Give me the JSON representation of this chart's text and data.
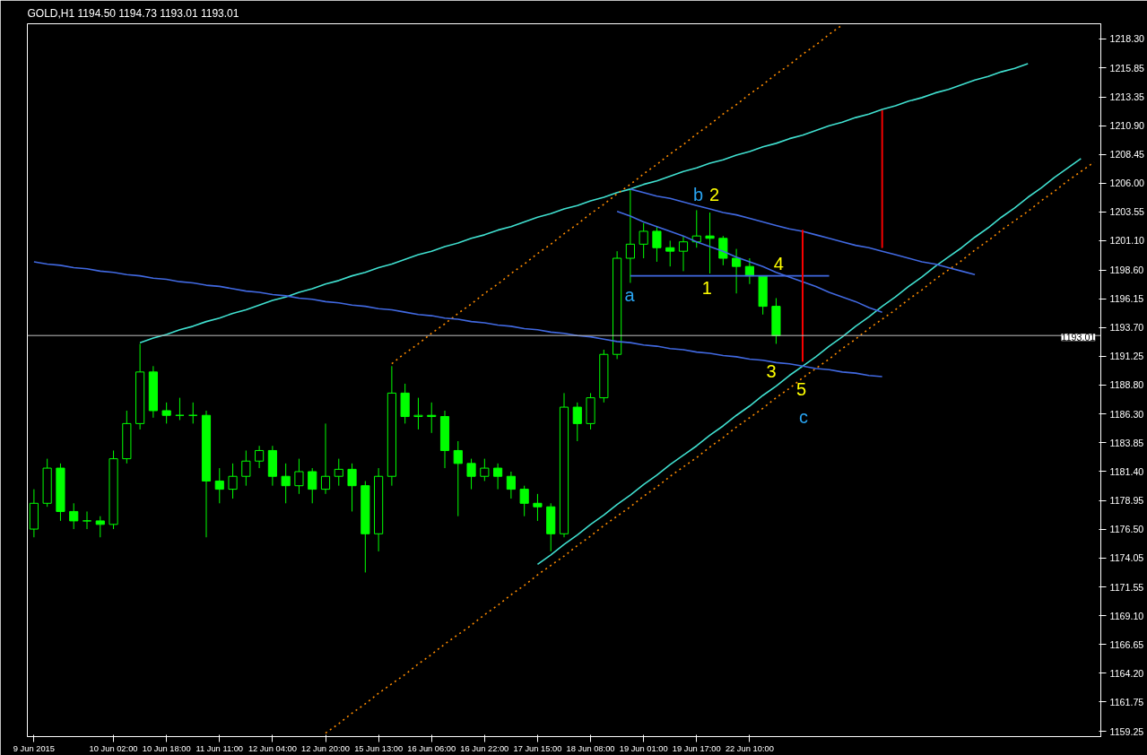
{
  "chart_data": {
    "type": "candlestick",
    "title": "GOLD,H1  1194.50 1194.73 1193.01 1193.01",
    "color": "#00ff00",
    "categories": [
      "9 Jun 2015",
      null,
      null,
      null,
      null,
      null,
      "10 Jun 02:00",
      null,
      null,
      null,
      "10 Jun 18:00",
      null,
      null,
      null,
      "11 Jun 11:00",
      null,
      null,
      null,
      "12 Jun 04:00",
      null,
      null,
      null,
      "12 Jun 20:00",
      null,
      null,
      null,
      "15 Jun 13:00",
      null,
      null,
      null,
      "16 Jun 06:00",
      null,
      null,
      null,
      "16 Jun 22:00",
      null,
      null,
      null,
      "17 Jun 15:00",
      null,
      null,
      null,
      "18 Jun 08:00",
      null,
      null,
      null,
      "19 Jun 01:00",
      null,
      null,
      null,
      "19 Jun 17:00",
      null,
      null,
      null,
      "22 Jun 10:00",
      null,
      null,
      null,
      null,
      null,
      null,
      null,
      null,
      null,
      null,
      null,
      null,
      null,
      null,
      null,
      null,
      null,
      null,
      null,
      null,
      null,
      null,
      null,
      null,
      null,
      null
    ],
    "ohlc": [
      [
        1176.5,
        1179.9,
        1175.8,
        1178.7
      ],
      [
        1178.7,
        1182.5,
        1178.4,
        1181.7
      ],
      [
        1181.7,
        1182.1,
        1177.2,
        1178.0
      ],
      [
        1178.0,
        1178.7,
        1176.5,
        1177.2
      ],
      [
        1177.2,
        1178.0,
        1176.5,
        1177.2
      ],
      [
        1177.2,
        1177.6,
        1175.8,
        1176.9
      ],
      [
        1176.9,
        1183.2,
        1176.5,
        1182.5
      ],
      [
        1182.5,
        1186.6,
        1182.1,
        1185.5
      ],
      [
        1185.5,
        1192.3,
        1185.0,
        1189.9
      ],
      [
        1189.9,
        1190.4,
        1186.0,
        1186.6
      ],
      [
        1186.6,
        1187.3,
        1185.5,
        1186.2
      ],
      [
        1186.2,
        1187.7,
        1185.8,
        1186.2
      ],
      [
        1186.2,
        1187.3,
        1185.5,
        1186.2
      ],
      [
        1186.2,
        1186.6,
        1175.8,
        1180.6
      ],
      [
        1180.6,
        1181.7,
        1178.7,
        1179.9
      ],
      [
        1179.9,
        1182.1,
        1179.1,
        1181.0
      ],
      [
        1181.0,
        1183.2,
        1180.2,
        1182.3
      ],
      [
        1182.3,
        1183.6,
        1181.7,
        1183.2
      ],
      [
        1183.2,
        1183.6,
        1180.2,
        1181.0
      ],
      [
        1181.0,
        1182.1,
        1178.7,
        1180.2
      ],
      [
        1180.2,
        1182.5,
        1179.5,
        1181.4
      ],
      [
        1181.4,
        1181.7,
        1178.7,
        1179.9
      ],
      [
        1179.9,
        1185.5,
        1179.5,
        1181.0
      ],
      [
        1181.0,
        1182.5,
        1180.2,
        1181.6
      ],
      [
        1181.6,
        1182.1,
        1178.0,
        1180.2
      ],
      [
        1180.2,
        1180.6,
        1172.8,
        1176.1
      ],
      [
        1176.1,
        1181.7,
        1174.6,
        1181.0
      ],
      [
        1181.0,
        1190.4,
        1180.2,
        1188.1
      ],
      [
        1188.1,
        1188.9,
        1185.5,
        1186.1
      ],
      [
        1186.1,
        1187.7,
        1185.0,
        1186.2
      ],
      [
        1186.2,
        1187.3,
        1184.7,
        1186.1
      ],
      [
        1186.1,
        1186.6,
        1181.7,
        1183.2
      ],
      [
        1183.2,
        1184.0,
        1177.6,
        1182.1
      ],
      [
        1182.1,
        1182.5,
        1179.9,
        1181.0
      ],
      [
        1181.0,
        1182.5,
        1180.6,
        1181.7
      ],
      [
        1181.7,
        1182.1,
        1179.9,
        1181.0
      ],
      [
        1181.0,
        1181.4,
        1179.1,
        1179.9
      ],
      [
        1179.9,
        1180.2,
        1177.6,
        1178.7
      ],
      [
        1178.7,
        1179.5,
        1177.2,
        1178.4
      ],
      [
        1178.4,
        1178.7,
        1174.6,
        1176.1
      ],
      [
        1176.1,
        1188.1,
        1175.8,
        1186.9
      ],
      [
        1186.9,
        1187.3,
        1184.0,
        1185.5
      ],
      [
        1185.5,
        1188.1,
        1185.0,
        1187.7
      ],
      [
        1187.7,
        1191.8,
        1187.3,
        1191.4
      ],
      [
        1191.4,
        1200.2,
        1191.0,
        1199.6
      ],
      [
        1199.6,
        1205.5,
        1197.5,
        1200.8
      ],
      [
        1200.8,
        1202.6,
        1199.6,
        1201.9
      ],
      [
        1201.9,
        1202.3,
        1199.3,
        1200.5
      ],
      [
        1200.5,
        1201.1,
        1198.9,
        1200.2
      ],
      [
        1200.2,
        1201.5,
        1198.5,
        1201.0
      ],
      [
        1201.0,
        1203.7,
        1200.5,
        1201.5
      ],
      [
        1201.5,
        1203.5,
        1198.3,
        1201.3
      ],
      [
        1201.3,
        1201.5,
        1199.0,
        1199.6
      ],
      [
        1199.6,
        1200.4,
        1196.6,
        1198.9
      ],
      [
        1198.9,
        1199.6,
        1197.4,
        1198.1
      ],
      [
        1198.1,
        1198.1,
        1194.8,
        1195.5
      ],
      [
        1195.5,
        1196.2,
        1192.3,
        1193.0
      ],
      null,
      null,
      null,
      null,
      null,
      null,
      null,
      null,
      null,
      null,
      null,
      null,
      null,
      null,
      null,
      null,
      null,
      null,
      null,
      null,
      null,
      null,
      null,
      null
    ],
    "series": [
      {
        "type": "line",
        "color": "#40e0d0",
        "values": [
          null,
          null,
          null,
          null,
          null,
          null,
          null,
          null,
          1192.4,
          1192.8,
          1193.1,
          1193.5,
          1193.8,
          1194.2,
          1194.5,
          1194.9,
          1195.2,
          1195.6,
          1196.0,
          1196.3,
          1196.7,
          1197.0,
          1197.4,
          1197.7,
          1198.1,
          1198.4,
          1198.8,
          1199.1,
          1199.5,
          1199.9,
          1200.2,
          1200.6,
          1200.9,
          1201.3,
          1201.6,
          1202.0,
          1202.3,
          1202.7,
          1203.1,
          1203.4,
          1203.8,
          1204.1,
          1204.5,
          1204.8,
          1205.2,
          1205.5,
          1205.9,
          1206.2,
          1206.6,
          1207.0,
          1207.3,
          1207.7,
          1208.0,
          1208.4,
          1208.7,
          1209.1,
          1209.4,
          1209.8,
          1210.1,
          1210.5,
          1210.9,
          1211.2,
          1211.6,
          1211.9,
          1212.3,
          1212.6,
          1213.0,
          1213.3,
          1213.7,
          1214.0,
          1214.4,
          1214.8,
          1215.1,
          1215.5,
          1215.8,
          1216.2,
          null,
          null,
          null,
          null,
          null
        ]
      },
      {
        "type": "line",
        "color": "#40e0d0",
        "values": [
          null,
          null,
          null,
          null,
          null,
          null,
          null,
          null,
          null,
          null,
          null,
          null,
          null,
          null,
          null,
          null,
          null,
          null,
          null,
          null,
          null,
          null,
          null,
          null,
          null,
          null,
          null,
          null,
          null,
          null,
          null,
          null,
          null,
          null,
          null,
          null,
          null,
          null,
          1173.5,
          1174.3,
          1175.2,
          1176.0,
          1176.9,
          1177.7,
          1178.6,
          1179.4,
          1180.3,
          1181.1,
          1182.0,
          1182.8,
          1183.6,
          1184.5,
          1185.3,
          1186.2,
          1187.0,
          1187.9,
          1188.7,
          1189.6,
          1190.4,
          1191.2,
          1192.1,
          1192.9,
          1193.8,
          1194.6,
          1195.5,
          1196.3,
          1197.2,
          1198.0,
          1198.9,
          1199.7,
          1200.5,
          1201.4,
          1202.2,
          1203.1,
          1203.9,
          1204.8,
          1205.6,
          1206.5,
          1207.3,
          1208.1,
          null
        ]
      },
      {
        "type": "line",
        "color": "#ff8c00",
        "line_style": "dotted",
        "values": [
          null,
          null,
          null,
          null,
          null,
          null,
          null,
          null,
          null,
          null,
          null,
          null,
          null,
          null,
          null,
          null,
          null,
          null,
          null,
          null,
          null,
          null,
          null,
          null,
          null,
          null,
          null,
          1190.6,
          1191.5,
          1192.3,
          1193.2,
          1194.0,
          1194.9,
          1195.7,
          1196.6,
          1197.4,
          1198.3,
          1199.1,
          1200.0,
          1200.8,
          1201.7,
          1202.5,
          1203.4,
          1204.2,
          1205.1,
          1205.9,
          1206.8,
          1207.6,
          1208.5,
          1209.3,
          1210.2,
          1211.0,
          1211.9,
          1212.7,
          1213.6,
          1214.4,
          1215.3,
          1216.1,
          1217.0,
          1217.8,
          1218.7,
          1219.5,
          null,
          null,
          null,
          null,
          null,
          null,
          null,
          null,
          null,
          null,
          null,
          null,
          null,
          null,
          null,
          null,
          null,
          null,
          null
        ]
      },
      {
        "type": "line",
        "color": "#ff8c00",
        "line_style": "dotted",
        "values": [
          null,
          null,
          null,
          null,
          null,
          null,
          null,
          null,
          null,
          null,
          null,
          null,
          null,
          null,
          null,
          null,
          null,
          null,
          null,
          null,
          null,
          null,
          1159.1,
          1159.9,
          1160.8,
          1161.6,
          1162.5,
          1163.3,
          1164.1,
          1165.0,
          1165.8,
          1166.7,
          1167.5,
          1168.3,
          1169.2,
          1170.0,
          1170.9,
          1171.7,
          1172.6,
          1173.4,
          1174.2,
          1175.1,
          1175.9,
          1176.8,
          1177.6,
          1178.4,
          1179.3,
          1180.1,
          1181.0,
          1181.8,
          1182.6,
          1183.5,
          1184.3,
          1185.2,
          1186.0,
          1186.8,
          1187.7,
          1188.5,
          1189.4,
          1190.2,
          1191.0,
          1191.9,
          1192.7,
          1193.6,
          1194.4,
          1195.2,
          1196.1,
          1196.9,
          1197.8,
          1198.6,
          1199.4,
          1200.3,
          1201.1,
          1202.0,
          1202.8,
          1203.6,
          1204.5,
          1205.3,
          1206.2,
          1207.0,
          1207.8
        ]
      },
      {
        "type": "line",
        "color": "#4169e1",
        "values": [
          1199.3,
          1199.1,
          1199.0,
          1198.8,
          1198.7,
          1198.5,
          1198.4,
          1198.2,
          1198.1,
          1197.9,
          1197.8,
          1197.6,
          1197.5,
          1197.3,
          1197.2,
          1197.0,
          1196.8,
          1196.7,
          1196.5,
          1196.4,
          1196.2,
          1196.1,
          1195.9,
          1195.8,
          1195.6,
          1195.5,
          1195.3,
          1195.2,
          1195.0,
          1194.8,
          1194.7,
          1194.5,
          1194.4,
          1194.2,
          1194.1,
          1193.9,
          1193.8,
          1193.6,
          1193.5,
          1193.3,
          1193.2,
          1193.0,
          1192.9,
          1192.7,
          1192.5,
          1192.4,
          1192.2,
          1192.1,
          1191.9,
          1191.8,
          1191.6,
          1191.5,
          1191.3,
          1191.2,
          1191.0,
          1190.9,
          1190.7,
          1190.6,
          1190.4,
          1190.2,
          1190.1,
          1189.9,
          1189.8,
          1189.6,
          1189.5,
          null,
          null,
          null,
          null,
          null,
          null,
          null,
          null,
          null,
          null,
          null,
          null,
          null,
          null,
          null,
          null
        ]
      },
      {
        "type": "line",
        "color": "#4169e1",
        "values": [
          null,
          null,
          null,
          null,
          null,
          null,
          null,
          null,
          null,
          null,
          null,
          null,
          null,
          null,
          null,
          null,
          null,
          null,
          null,
          null,
          null,
          null,
          null,
          null,
          null,
          null,
          null,
          null,
          null,
          null,
          null,
          null,
          null,
          null,
          null,
          null,
          null,
          null,
          null,
          null,
          null,
          null,
          null,
          null,
          null,
          1205.5,
          1205.2,
          1204.9,
          1204.7,
          1204.4,
          1204.1,
          1203.8,
          1203.5,
          1203.3,
          1203.0,
          1202.7,
          1202.4,
          1202.1,
          1201.9,
          1201.6,
          1201.3,
          1201.0,
          1200.7,
          1200.5,
          1200.2,
          1199.9,
          1199.6,
          1199.3,
          1199.1,
          1198.8,
          1198.5,
          1198.2,
          null,
          null,
          null,
          null,
          null,
          null,
          null,
          null,
          null
        ]
      },
      {
        "type": "line",
        "color": "#4169e1",
        "values": [
          null,
          null,
          null,
          null,
          null,
          null,
          null,
          null,
          null,
          null,
          null,
          null,
          null,
          null,
          null,
          null,
          null,
          null,
          null,
          null,
          null,
          null,
          null,
          null,
          null,
          null,
          null,
          null,
          null,
          null,
          null,
          null,
          null,
          null,
          null,
          null,
          null,
          null,
          null,
          null,
          null,
          null,
          null,
          null,
          1203.6,
          1203.2,
          1202.7,
          1202.3,
          1201.9,
          1201.5,
          1201.0,
          1200.6,
          1200.2,
          1199.7,
          1199.3,
          1198.9,
          1198.4,
          1198.0,
          1197.6,
          1197.2,
          1196.7,
          1196.3,
          1195.9,
          1195.4,
          1195.0,
          null,
          null,
          null,
          null,
          null,
          null,
          null,
          null,
          null,
          null,
          null,
          null,
          null,
          null,
          null,
          null
        ]
      },
      {
        "type": "line",
        "color": "#4169e1",
        "values": [
          null,
          null,
          null,
          null,
          null,
          null,
          null,
          null,
          null,
          null,
          null,
          null,
          null,
          null,
          null,
          null,
          null,
          null,
          null,
          null,
          null,
          null,
          null,
          null,
          null,
          null,
          null,
          null,
          null,
          null,
          null,
          null,
          null,
          null,
          null,
          null,
          null,
          null,
          null,
          null,
          null,
          null,
          null,
          null,
          null,
          1198.1,
          1198.1,
          1198.1,
          1198.1,
          1198.1,
          1198.1,
          1198.1,
          1198.1,
          1198.1,
          1198.1,
          1198.1,
          1198.1,
          1198.1,
          1198.1,
          1198.1,
          1198.1,
          null,
          null,
          null,
          null,
          null,
          null,
          null,
          null,
          null,
          null,
          null,
          null,
          null,
          null,
          null,
          null,
          null,
          null,
          null,
          null
        ]
      },
      {
        "type": "bar",
        "color": "#ff0000",
        "base": [
          null,
          null,
          null,
          null,
          null,
          null,
          null,
          null,
          null,
          null,
          null,
          null,
          null,
          null,
          null,
          null,
          null,
          null,
          null,
          null,
          null,
          null,
          null,
          null,
          null,
          null,
          null,
          null,
          null,
          null,
          null,
          null,
          null,
          null,
          null,
          null,
          null,
          null,
          null,
          null,
          null,
          null,
          null,
          null,
          null,
          null,
          null,
          null,
          null,
          null,
          null,
          null,
          null,
          null,
          null,
          null,
          null,
          null,
          1190.8,
          null,
          null,
          null,
          null,
          null,
          1200.5,
          null,
          null,
          null,
          null,
          null,
          null,
          null,
          null,
          null,
          null,
          null,
          null,
          null,
          null,
          null,
          null
        ],
        "values": [
          null,
          null,
          null,
          null,
          null,
          null,
          null,
          null,
          null,
          null,
          null,
          null,
          null,
          null,
          null,
          null,
          null,
          null,
          null,
          null,
          null,
          null,
          null,
          null,
          null,
          null,
          null,
          null,
          null,
          null,
          null,
          null,
          null,
          null,
          null,
          null,
          null,
          null,
          null,
          null,
          null,
          null,
          null,
          null,
          null,
          null,
          null,
          null,
          null,
          null,
          null,
          null,
          null,
          null,
          null,
          null,
          null,
          null,
          11.2,
          null,
          null,
          null,
          null,
          null,
          11.7,
          null,
          null,
          null,
          null,
          null,
          null,
          null,
          null,
          null,
          null,
          null,
          null,
          null,
          null,
          null,
          null
        ]
      }
    ],
    "ref_lines": [
      {
        "axis": "y",
        "value": 1193.01,
        "label": "1193.01",
        "color": "#c0c0c0"
      }
    ],
    "annotations": [
      "a",
      "b",
      "2",
      "1",
      "4",
      "3",
      "5",
      "c"
    ],
    "ylim": [
      1158.8,
      1219.6
    ],
    "yticks": [
      {
        "value": 1159.25,
        "label": "1159.25"
      },
      {
        "value": 1161.75,
        "label": "1161.75"
      },
      {
        "value": 1164.2,
        "label": "1164.20"
      },
      {
        "value": 1166.65,
        "label": "1166.65"
      },
      {
        "value": 1169.1,
        "label": "1169.10"
      },
      {
        "value": 1171.55,
        "label": "1171.55"
      },
      {
        "value": 1174.05,
        "label": "1174.05"
      },
      {
        "value": 1176.5,
        "label": "1176.50"
      },
      {
        "value": 1178.95,
        "label": "1178.95"
      },
      {
        "value": 1181.4,
        "label": "1181.40"
      },
      {
        "value": 1183.85,
        "label": "1183.85"
      },
      {
        "value": 1186.3,
        "label": "1186.30"
      },
      {
        "value": 1188.8,
        "label": "1188.80"
      },
      {
        "value": 1191.25,
        "label": "1191.25"
      },
      {
        "value": 1193.7,
        "label": "1193.70"
      },
      {
        "value": 1196.15,
        "label": "1196.15"
      },
      {
        "value": 1198.6,
        "label": "1198.60"
      },
      {
        "value": 1201.1,
        "label": "1201.10"
      },
      {
        "value": 1203.55,
        "label": "1203.55"
      },
      {
        "value": 1206.0,
        "label": "1206.00"
      },
      {
        "value": 1208.45,
        "label": "1208.45"
      },
      {
        "value": 1210.9,
        "label": "1210.90"
      },
      {
        "value": 1213.35,
        "label": "1213.35"
      },
      {
        "value": 1215.85,
        "label": "1215.85"
      },
      {
        "value": 1218.3,
        "label": "1218.30"
      }
    ]
  }
}
